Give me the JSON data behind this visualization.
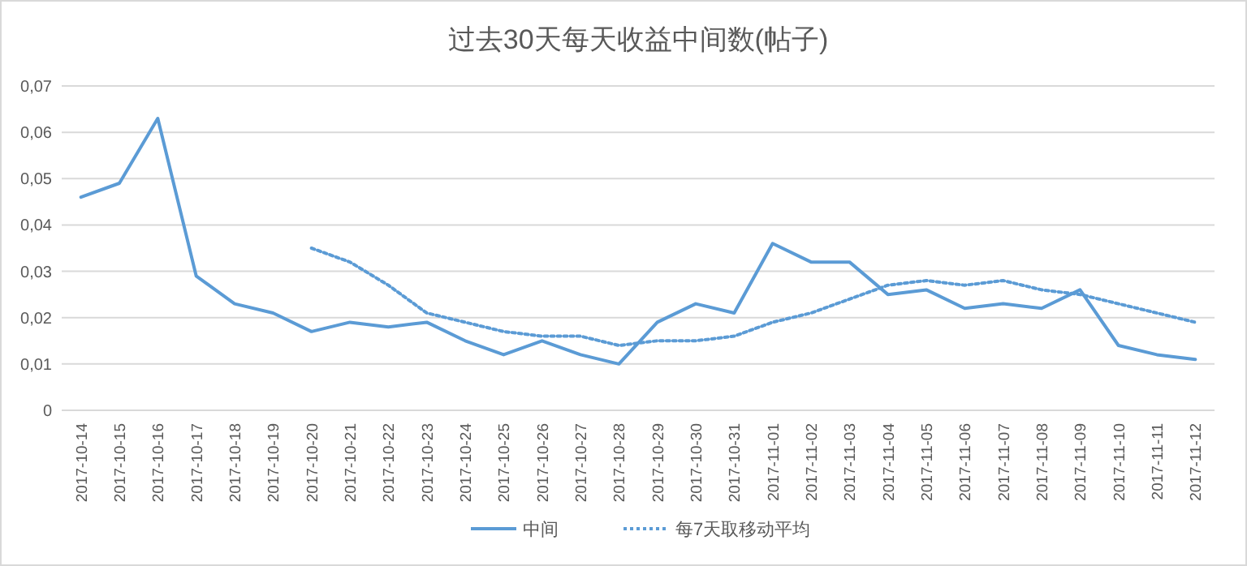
{
  "chart_data": {
    "type": "line",
    "title": "过去30天每天收益中间数(帖子)",
    "categories": [
      "2017-10-14",
      "2017-10-15",
      "2017-10-16",
      "2017-10-17",
      "2017-10-18",
      "2017-10-19",
      "2017-10-20",
      "2017-10-21",
      "2017-10-22",
      "2017-10-23",
      "2017-10-24",
      "2017-10-25",
      "2017-10-26",
      "2017-10-27",
      "2017-10-28",
      "2017-10-29",
      "2017-10-30",
      "2017-10-31",
      "2017-11-01",
      "2017-11-02",
      "2017-11-03",
      "2017-11-04",
      "2017-11-05",
      "2017-11-06",
      "2017-11-07",
      "2017-11-08",
      "2017-11-09",
      "2017-11-10",
      "2017-11-11",
      "2017-11-12"
    ],
    "series": [
      {
        "name": "中间",
        "color": "#5b9bd5",
        "line_style": "solid",
        "values": [
          0.046,
          0.049,
          0.063,
          0.029,
          0.023,
          0.021,
          0.017,
          0.019,
          0.018,
          0.019,
          0.015,
          0.012,
          0.015,
          0.012,
          0.01,
          0.019,
          0.023,
          0.021,
          0.036,
          0.032,
          0.032,
          0.025,
          0.026,
          0.022,
          0.023,
          0.022,
          0.026,
          0.014,
          0.012,
          0.011
        ]
      },
      {
        "name": "每7天取移动平均",
        "color": "#5b9bd5",
        "line_style": "dotted",
        "values": [
          null,
          null,
          null,
          null,
          null,
          null,
          0.035,
          0.032,
          0.027,
          0.021,
          0.019,
          0.017,
          0.016,
          0.016,
          0.014,
          0.015,
          0.015,
          0.016,
          0.019,
          0.021,
          0.024,
          0.027,
          0.028,
          0.027,
          0.028,
          0.026,
          0.025,
          0.023,
          0.021,
          0.019
        ]
      }
    ],
    "ylim": [
      0,
      0.07
    ],
    "yticks": [
      0,
      {
        "value": 0.01,
        "label": "0,01"
      },
      {
        "value": 0.02,
        "label": "0,02"
      },
      {
        "value": 0.03,
        "label": "0,03"
      },
      {
        "value": 0.04,
        "label": "0,04"
      },
      {
        "value": 0.05,
        "label": "0,05"
      },
      {
        "value": 0.06,
        "label": "0,06"
      },
      {
        "value": 0.07,
        "label": "0,07"
      }
    ],
    "grid": "y",
    "legend": "bottom"
  }
}
